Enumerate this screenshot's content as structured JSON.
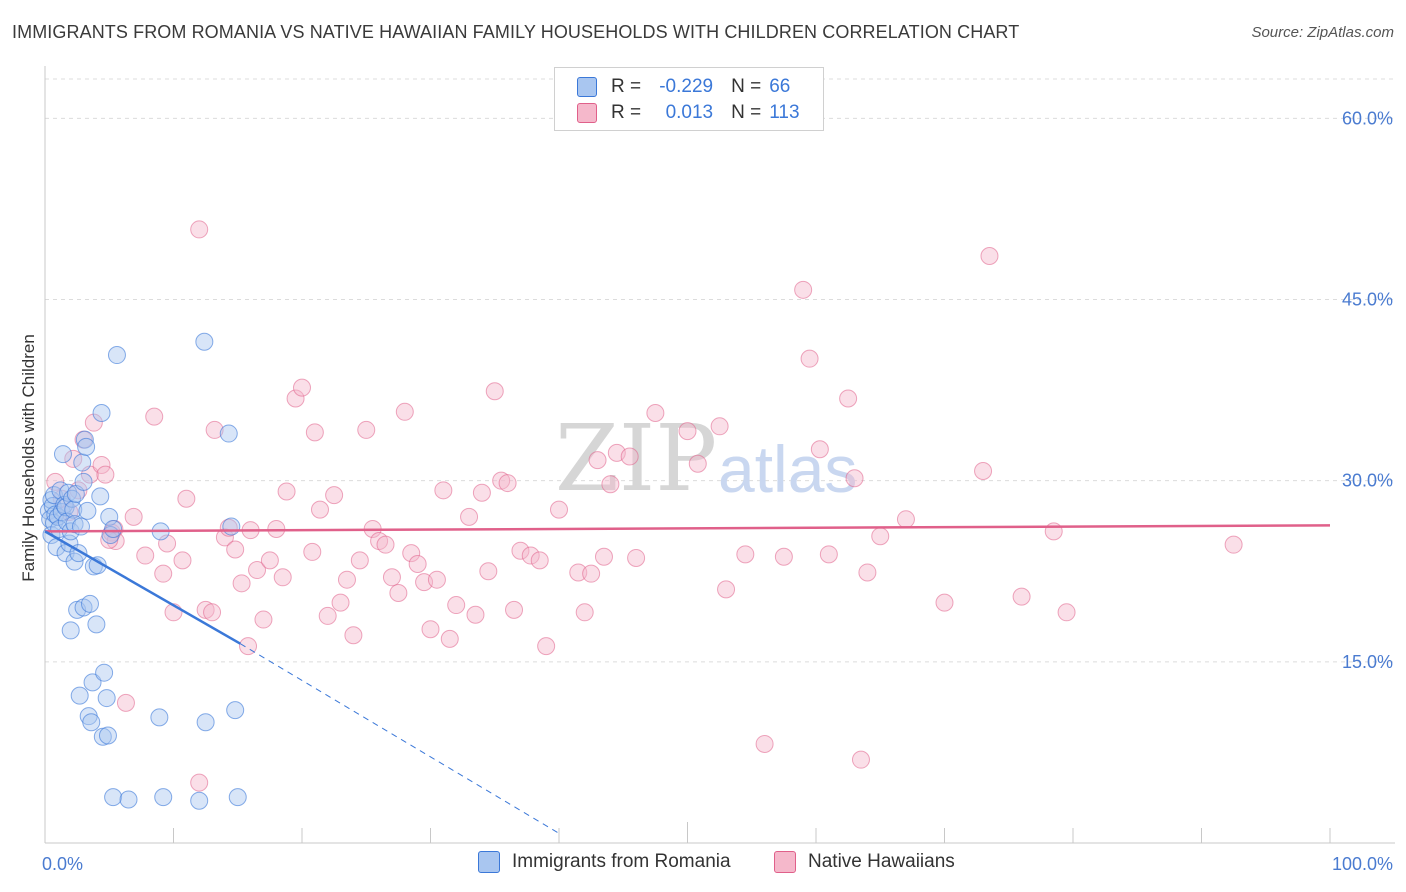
{
  "title": "IMMIGRANTS FROM ROMANIA VS NATIVE HAWAIIAN FAMILY HOUSEHOLDS WITH CHILDREN CORRELATION CHART",
  "source": "Source: ZipAtlas.com",
  "watermark": {
    "zip": "ZIP",
    "atlas": "atlas"
  },
  "legend_top": {
    "rows": [
      {
        "r_label": "R =",
        "r_value": "-0.229",
        "n_label": "N =",
        "n_value": "66"
      },
      {
        "r_label": "R =",
        "r_value": "0.013",
        "n_label": "N =",
        "n_value": "113"
      }
    ]
  },
  "legend_bottom": {
    "series1": "Immigrants from Romania",
    "series2": "Native Hawaiians"
  },
  "colors": {
    "blue": "#3b78d8",
    "blue_fill": "#a9c6f0",
    "pink": "#e0608a",
    "pink_fill": "#f5b8cb",
    "tick": "#4a7bd0"
  },
  "chart_data": {
    "type": "scatter",
    "title": "IMMIGRANTS FROM ROMANIA VS NATIVE HAWAIIAN FAMILY HOUSEHOLDS WITH CHILDREN CORRELATION CHART",
    "xlabel": "",
    "ylabel": "Family Households with Children",
    "xlim": [
      0,
      100
    ],
    "ylim": [
      0,
      64
    ],
    "x_tick_labels": [
      {
        "value": 0,
        "label": "0.0%"
      },
      {
        "value": 100,
        "label": "100.0%"
      }
    ],
    "y_tick_labels": [
      {
        "value": 15,
        "label": "15.0%"
      },
      {
        "value": 30,
        "label": "30.0%"
      },
      {
        "value": 45,
        "label": "45.0%"
      },
      {
        "value": 60,
        "label": "60.0%"
      }
    ],
    "series": [
      {
        "name": "Immigrants from Romania",
        "R": -0.229,
        "N": 66,
        "trend": {
          "x0": 0,
          "y0": 25.8,
          "x1": 15.2,
          "y1": 16.5,
          "dash_x1": 40,
          "dash_y1": 0.8
        },
        "points": [
          [
            0.3,
            27.5
          ],
          [
            0.4,
            26.8
          ],
          [
            0.5,
            28.4
          ],
          [
            0.5,
            25.5
          ],
          [
            0.6,
            27.9
          ],
          [
            0.7,
            26.5
          ],
          [
            0.7,
            28.8
          ],
          [
            0.8,
            27.2
          ],
          [
            0.9,
            24.5
          ],
          [
            1.0,
            27.0
          ],
          [
            1.1,
            26.0
          ],
          [
            1.2,
            29.2
          ],
          [
            1.3,
            27.4
          ],
          [
            1.4,
            32.2
          ],
          [
            1.5,
            28.0
          ],
          [
            1.6,
            24.0
          ],
          [
            1.6,
            27.8
          ],
          [
            1.7,
            26.6
          ],
          [
            1.8,
            29.0
          ],
          [
            1.9,
            24.8
          ],
          [
            2.0,
            25.8
          ],
          [
            2.1,
            28.5
          ],
          [
            2.2,
            27.6
          ],
          [
            2.3,
            26.4
          ],
          [
            2.0,
            17.6
          ],
          [
            2.3,
            23.3
          ],
          [
            2.4,
            28.9
          ],
          [
            2.5,
            19.3
          ],
          [
            2.6,
            24.0
          ],
          [
            2.7,
            12.2
          ],
          [
            2.8,
            26.2
          ],
          [
            2.9,
            31.5
          ],
          [
            3.0,
            29.9
          ],
          [
            3.1,
            33.4
          ],
          [
            3.2,
            32.8
          ],
          [
            3.3,
            27.5
          ],
          [
            3.0,
            19.5
          ],
          [
            3.4,
            10.5
          ],
          [
            3.5,
            19.8
          ],
          [
            3.6,
            10.0
          ],
          [
            3.7,
            13.3
          ],
          [
            3.8,
            22.9
          ],
          [
            4.0,
            18.1
          ],
          [
            4.1,
            23.0
          ],
          [
            4.3,
            28.7
          ],
          [
            4.4,
            35.6
          ],
          [
            4.5,
            8.8
          ],
          [
            4.6,
            14.1
          ],
          [
            4.8,
            12.0
          ],
          [
            4.9,
            8.9
          ],
          [
            5.0,
            27.0
          ],
          [
            5.1,
            25.5
          ],
          [
            5.3,
            26.0
          ],
          [
            5.6,
            40.4
          ],
          [
            5.3,
            3.8
          ],
          [
            6.5,
            3.6
          ],
          [
            8.9,
            10.4
          ],
          [
            9.2,
            3.8
          ],
          [
            9.0,
            25.8
          ],
          [
            12.4,
            41.5
          ],
          [
            12.0,
            3.5
          ],
          [
            12.5,
            10.0
          ],
          [
            14.3,
            33.9
          ],
          [
            14.5,
            26.2
          ],
          [
            15.0,
            3.8
          ],
          [
            14.8,
            11.0
          ]
        ]
      },
      {
        "name": "Native Hawaiians",
        "R": 0.013,
        "N": 113,
        "trend": {
          "x0": 0,
          "y0": 25.8,
          "x1": 100,
          "y1": 26.3
        },
        "points": [
          [
            0.8,
            29.9
          ],
          [
            1.3,
            28.5
          ],
          [
            1.9,
            27.4
          ],
          [
            2.2,
            31.8
          ],
          [
            2.6,
            29.2
          ],
          [
            3.0,
            33.4
          ],
          [
            3.5,
            30.5
          ],
          [
            3.8,
            34.8
          ],
          [
            4.4,
            31.3
          ],
          [
            4.7,
            30.5
          ],
          [
            5.2,
            25.7
          ],
          [
            5.4,
            26.0
          ],
          [
            5.5,
            25.0
          ],
          [
            6.9,
            27.0
          ],
          [
            7.8,
            23.8
          ],
          [
            8.5,
            35.3
          ],
          [
            9.2,
            22.3
          ],
          [
            9.5,
            24.8
          ],
          [
            10.0,
            19.1
          ],
          [
            10.7,
            23.4
          ],
          [
            11.0,
            28.5
          ],
          [
            12.0,
            50.8
          ],
          [
            12.0,
            5.0
          ],
          [
            12.5,
            19.3
          ],
          [
            13.0,
            19.1
          ],
          [
            13.2,
            34.2
          ],
          [
            14.0,
            25.3
          ],
          [
            14.3,
            26.1
          ],
          [
            14.8,
            24.3
          ],
          [
            15.3,
            21.5
          ],
          [
            15.8,
            16.3
          ],
          [
            16.0,
            25.9
          ],
          [
            16.5,
            22.6
          ],
          [
            17.0,
            18.5
          ],
          [
            17.5,
            23.4
          ],
          [
            18.0,
            26.0
          ],
          [
            18.5,
            22.0
          ],
          [
            18.8,
            29.1
          ],
          [
            19.5,
            36.8
          ],
          [
            20.0,
            37.7
          ],
          [
            20.8,
            24.1
          ],
          [
            21.0,
            34.0
          ],
          [
            21.4,
            27.6
          ],
          [
            22.0,
            18.8
          ],
          [
            22.5,
            28.8
          ],
          [
            23.0,
            19.9
          ],
          [
            23.5,
            21.8
          ],
          [
            24.0,
            17.2
          ],
          [
            24.5,
            23.4
          ],
          [
            25.0,
            34.2
          ],
          [
            25.5,
            26.0
          ],
          [
            26.0,
            25.0
          ],
          [
            26.5,
            24.7
          ],
          [
            27.0,
            22.0
          ],
          [
            27.5,
            20.7
          ],
          [
            28.0,
            35.7
          ],
          [
            28.5,
            24.0
          ],
          [
            29.0,
            23.1
          ],
          [
            29.5,
            21.6
          ],
          [
            30.0,
            17.7
          ],
          [
            30.5,
            21.8
          ],
          [
            31.0,
            29.2
          ],
          [
            31.5,
            16.9
          ],
          [
            32.0,
            19.7
          ],
          [
            33.0,
            27.0
          ],
          [
            33.5,
            18.9
          ],
          [
            34.0,
            29.0
          ],
          [
            34.5,
            22.5
          ],
          [
            35.0,
            37.4
          ],
          [
            35.5,
            30.0
          ],
          [
            36.0,
            29.8
          ],
          [
            36.5,
            19.3
          ],
          [
            37.0,
            24.2
          ],
          [
            37.8,
            23.8
          ],
          [
            38.5,
            23.4
          ],
          [
            39.0,
            16.3
          ],
          [
            40.0,
            27.6
          ],
          [
            41.5,
            22.4
          ],
          [
            42.0,
            19.1
          ],
          [
            42.5,
            22.3
          ],
          [
            43.0,
            31.7
          ],
          [
            43.5,
            23.7
          ],
          [
            44.0,
            29.7
          ],
          [
            44.5,
            32.3
          ],
          [
            45.5,
            32.0
          ],
          [
            46.0,
            23.6
          ],
          [
            47.5,
            35.6
          ],
          [
            50.0,
            34.1
          ],
          [
            50.8,
            31.4
          ],
          [
            52.5,
            34.5
          ],
          [
            53.0,
            21.0
          ],
          [
            54.5,
            23.9
          ],
          [
            56.0,
            8.2
          ],
          [
            57.5,
            23.7
          ],
          [
            59.0,
            45.8
          ],
          [
            59.5,
            40.1
          ],
          [
            60.3,
            32.6
          ],
          [
            61.0,
            23.9
          ],
          [
            62.5,
            36.8
          ],
          [
            63.0,
            30.2
          ],
          [
            63.5,
            6.9
          ],
          [
            64.0,
            22.4
          ],
          [
            65.0,
            25.4
          ],
          [
            67.0,
            26.8
          ],
          [
            70.0,
            19.9
          ],
          [
            73.0,
            30.8
          ],
          [
            73.5,
            48.6
          ],
          [
            76.0,
            20.4
          ],
          [
            78.5,
            25.8
          ],
          [
            79.5,
            19.1
          ],
          [
            92.5,
            24.7
          ],
          [
            5.0,
            25.1
          ],
          [
            6.3,
            11.6
          ]
        ]
      }
    ]
  }
}
